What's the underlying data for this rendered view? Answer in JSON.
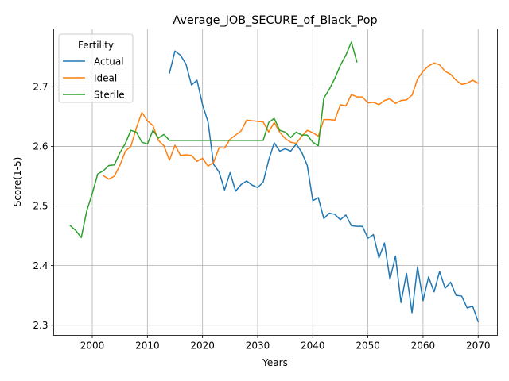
{
  "chart_data": {
    "type": "line",
    "title": "Average_JOB_SECURE_of_Black_Pop",
    "xlabel": "Years",
    "ylabel": "Score(1-5)",
    "xlim": [
      1993,
      2073.5
    ],
    "ylim": [
      2.283,
      2.797
    ],
    "xticks": [
      2000,
      2010,
      2020,
      2030,
      2040,
      2050,
      2060,
      2070
    ],
    "yticks": [
      2.3,
      2.4,
      2.5,
      2.6,
      2.7
    ],
    "grid": true,
    "legend": {
      "title": "Fertility",
      "placement": "top-left"
    },
    "series": [
      {
        "name": "Actual",
        "color": "#1f77b4",
        "points": [
          [
            2014,
            2.723
          ],
          [
            2015,
            2.76
          ],
          [
            2016,
            2.753
          ],
          [
            2017,
            2.738
          ],
          [
            2018,
            2.703
          ],
          [
            2019,
            2.711
          ],
          [
            2020,
            2.67
          ],
          [
            2021,
            2.641
          ],
          [
            2022,
            2.57
          ],
          [
            2023,
            2.557
          ],
          [
            2024,
            2.527
          ],
          [
            2025,
            2.556
          ],
          [
            2026,
            2.525
          ],
          [
            2027,
            2.536
          ],
          [
            2028,
            2.542
          ],
          [
            2029,
            2.535
          ],
          [
            2030,
            2.531
          ],
          [
            2031,
            2.54
          ],
          [
            2032,
            2.577
          ],
          [
            2033,
            2.606
          ],
          [
            2034,
            2.592
          ],
          [
            2035,
            2.596
          ],
          [
            2036,
            2.592
          ],
          [
            2037,
            2.604
          ],
          [
            2038,
            2.59
          ],
          [
            2039,
            2.568
          ],
          [
            2040,
            2.509
          ],
          [
            2041,
            2.514
          ],
          [
            2042,
            2.479
          ],
          [
            2043,
            2.488
          ],
          [
            2044,
            2.486
          ],
          [
            2045,
            2.477
          ],
          [
            2046,
            2.485
          ],
          [
            2047,
            2.467
          ],
          [
            2048,
            2.466
          ],
          [
            2049,
            2.466
          ],
          [
            2050,
            2.446
          ],
          [
            2051,
            2.452
          ],
          [
            2052,
            2.413
          ],
          [
            2053,
            2.438
          ],
          [
            2054,
            2.377
          ],
          [
            2055,
            2.416
          ],
          [
            2056,
            2.338
          ],
          [
            2057,
            2.387
          ],
          [
            2058,
            2.321
          ],
          [
            2059,
            2.398
          ],
          [
            2060,
            2.341
          ],
          [
            2061,
            2.381
          ],
          [
            2062,
            2.356
          ],
          [
            2063,
            2.39
          ],
          [
            2064,
            2.362
          ],
          [
            2065,
            2.372
          ],
          [
            2066,
            2.35
          ],
          [
            2067,
            2.349
          ],
          [
            2068,
            2.329
          ],
          [
            2069,
            2.332
          ],
          [
            2070,
            2.306
          ]
        ]
      },
      {
        "name": "Ideal",
        "color": "#ff7f0e",
        "points": [
          [
            2002,
            2.551
          ],
          [
            2003,
            2.545
          ],
          [
            2004,
            2.55
          ],
          [
            2005,
            2.568
          ],
          [
            2006,
            2.592
          ],
          [
            2007,
            2.6
          ],
          [
            2008,
            2.631
          ],
          [
            2009,
            2.657
          ],
          [
            2010,
            2.643
          ],
          [
            2011,
            2.635
          ],
          [
            2012,
            2.61
          ],
          [
            2013,
            2.601
          ],
          [
            2014,
            2.577
          ],
          [
            2015,
            2.602
          ],
          [
            2016,
            2.585
          ],
          [
            2017,
            2.586
          ],
          [
            2018,
            2.585
          ],
          [
            2019,
            2.575
          ],
          [
            2020,
            2.58
          ],
          [
            2021,
            2.567
          ],
          [
            2022,
            2.573
          ],
          [
            2023,
            2.598
          ],
          [
            2024,
            2.597
          ],
          [
            2025,
            2.612
          ],
          [
            2026,
            2.619
          ],
          [
            2027,
            2.626
          ],
          [
            2028,
            2.644
          ],
          [
            2029,
            2.643
          ],
          [
            2030,
            2.642
          ],
          [
            2031,
            2.641
          ],
          [
            2032,
            2.624
          ],
          [
            2033,
            2.64
          ],
          [
            2034,
            2.624
          ],
          [
            2035,
            2.613
          ],
          [
            2036,
            2.607
          ],
          [
            2037,
            2.605
          ],
          [
            2038,
            2.617
          ],
          [
            2039,
            2.627
          ],
          [
            2040,
            2.623
          ],
          [
            2041,
            2.617
          ],
          [
            2042,
            2.645
          ],
          [
            2043,
            2.645
          ],
          [
            2044,
            2.644
          ],
          [
            2045,
            2.67
          ],
          [
            2046,
            2.668
          ],
          [
            2047,
            2.687
          ],
          [
            2048,
            2.683
          ],
          [
            2049,
            2.683
          ],
          [
            2050,
            2.673
          ],
          [
            2051,
            2.674
          ],
          [
            2052,
            2.67
          ],
          [
            2053,
            2.677
          ],
          [
            2054,
            2.68
          ],
          [
            2055,
            2.672
          ],
          [
            2056,
            2.677
          ],
          [
            2057,
            2.678
          ],
          [
            2058,
            2.686
          ],
          [
            2059,
            2.713
          ],
          [
            2060,
            2.726
          ],
          [
            2061,
            2.735
          ],
          [
            2062,
            2.74
          ],
          [
            2063,
            2.737
          ],
          [
            2064,
            2.726
          ],
          [
            2065,
            2.721
          ],
          [
            2066,
            2.711
          ],
          [
            2067,
            2.704
          ],
          [
            2068,
            2.706
          ],
          [
            2069,
            2.711
          ],
          [
            2070,
            2.706
          ]
        ]
      },
      {
        "name": "Sterile",
        "color": "#2ca02c",
        "points": [
          [
            1996,
            2.467
          ],
          [
            1997,
            2.459
          ],
          [
            1998,
            2.447
          ],
          [
            1999,
            2.492
          ],
          [
            2000,
            2.521
          ],
          [
            2001,
            2.554
          ],
          [
            2002,
            2.559
          ],
          [
            2003,
            2.568
          ],
          [
            2004,
            2.569
          ],
          [
            2005,
            2.589
          ],
          [
            2006,
            2.605
          ],
          [
            2007,
            2.627
          ],
          [
            2008,
            2.624
          ],
          [
            2009,
            2.607
          ],
          [
            2010,
            2.604
          ],
          [
            2011,
            2.627
          ],
          [
            2012,
            2.614
          ],
          [
            2013,
            2.62
          ],
          [
            2014,
            2.61
          ],
          [
            2015,
            2.61
          ],
          [
            2016,
            2.61
          ],
          [
            2017,
            2.61
          ],
          [
            2018,
            2.61
          ],
          [
            2019,
            2.61
          ],
          [
            2020,
            2.61
          ],
          [
            2021,
            2.61
          ],
          [
            2022,
            2.61
          ],
          [
            2023,
            2.61
          ],
          [
            2024,
            2.61
          ],
          [
            2025,
            2.61
          ],
          [
            2026,
            2.61
          ],
          [
            2027,
            2.61
          ],
          [
            2028,
            2.61
          ],
          [
            2029,
            2.61
          ],
          [
            2030,
            2.61
          ],
          [
            2031,
            2.61
          ],
          [
            2032,
            2.64
          ],
          [
            2033,
            2.647
          ],
          [
            2034,
            2.627
          ],
          [
            2035,
            2.624
          ],
          [
            2036,
            2.615
          ],
          [
            2037,
            2.624
          ],
          [
            2038,
            2.619
          ],
          [
            2039,
            2.619
          ],
          [
            2040,
            2.607
          ],
          [
            2041,
            2.601
          ],
          [
            2042,
            2.681
          ],
          [
            2043,
            2.696
          ],
          [
            2044,
            2.714
          ],
          [
            2045,
            2.736
          ],
          [
            2046,
            2.753
          ],
          [
            2047,
            2.775
          ],
          [
            2048,
            2.742
          ]
        ]
      }
    ]
  }
}
